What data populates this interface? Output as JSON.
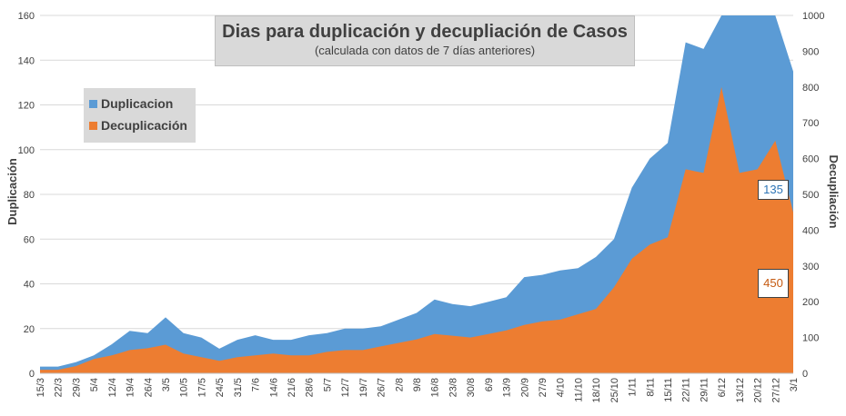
{
  "chart_data": {
    "type": "area",
    "title": "Dias para duplicación y decupliación de Casos",
    "subtitle": "(calculada con datos de 7 días anteriores)",
    "ylabel": "Duplicación",
    "y2label": "Decupliación",
    "ylim": [
      0,
      160
    ],
    "y2lim": [
      0,
      1000
    ],
    "yticks": [
      0,
      20,
      40,
      60,
      80,
      100,
      120,
      140,
      160
    ],
    "y2ticks": [
      0,
      100,
      200,
      300,
      400,
      500,
      600,
      700,
      800,
      900,
      1000
    ],
    "categories": [
      "15/3",
      "22/3",
      "29/3",
      "5/4",
      "12/4",
      "19/4",
      "26/4",
      "3/5",
      "10/5",
      "17/5",
      "24/5",
      "31/5",
      "7/6",
      "14/6",
      "21/6",
      "28/6",
      "5/7",
      "12/7",
      "19/7",
      "26/7",
      "2/8",
      "9/8",
      "16/8",
      "23/8",
      "30/8",
      "6/9",
      "13/9",
      "20/9",
      "27/9",
      "4/10",
      "11/10",
      "18/10",
      "25/10",
      "1/11",
      "8/11",
      "15/11",
      "22/11",
      "29/11",
      "6/12",
      "13/12",
      "20/12",
      "27/12",
      "3/1"
    ],
    "legend": [
      "Duplicacion",
      "Decuplicación"
    ],
    "legend_position": "top-left",
    "grid": true,
    "series": [
      {
        "name": "Duplicacion",
        "axis": "left",
        "color": "#5b9bd5",
        "values": [
          3,
          3,
          5,
          8,
          13,
          19,
          18,
          25,
          18,
          16,
          11,
          15,
          17,
          15,
          15,
          17,
          18,
          20,
          20,
          21,
          24,
          27,
          33,
          31,
          30,
          32,
          34,
          43,
          44,
          46,
          47,
          52,
          60,
          83,
          96,
          103,
          148,
          145,
          165,
          165,
          165,
          165,
          135
        ]
      },
      {
        "name": "Decuplicación",
        "axis": "right",
        "color": "#ed7d31",
        "values": [
          10,
          10,
          20,
          40,
          50,
          65,
          70,
          80,
          55,
          45,
          35,
          45,
          50,
          55,
          50,
          50,
          60,
          65,
          65,
          75,
          85,
          95,
          110,
          105,
          100,
          110,
          120,
          135,
          145,
          150,
          165,
          180,
          240,
          320,
          360,
          380,
          570,
          560,
          800,
          560,
          570,
          650,
          450
        ]
      }
    ],
    "annotations": [
      {
        "series": "Duplicacion",
        "label": "135",
        "color": "#2e75b6"
      },
      {
        "series": "Decuplicación",
        "label": "450",
        "color": "#c55a11"
      }
    ]
  }
}
